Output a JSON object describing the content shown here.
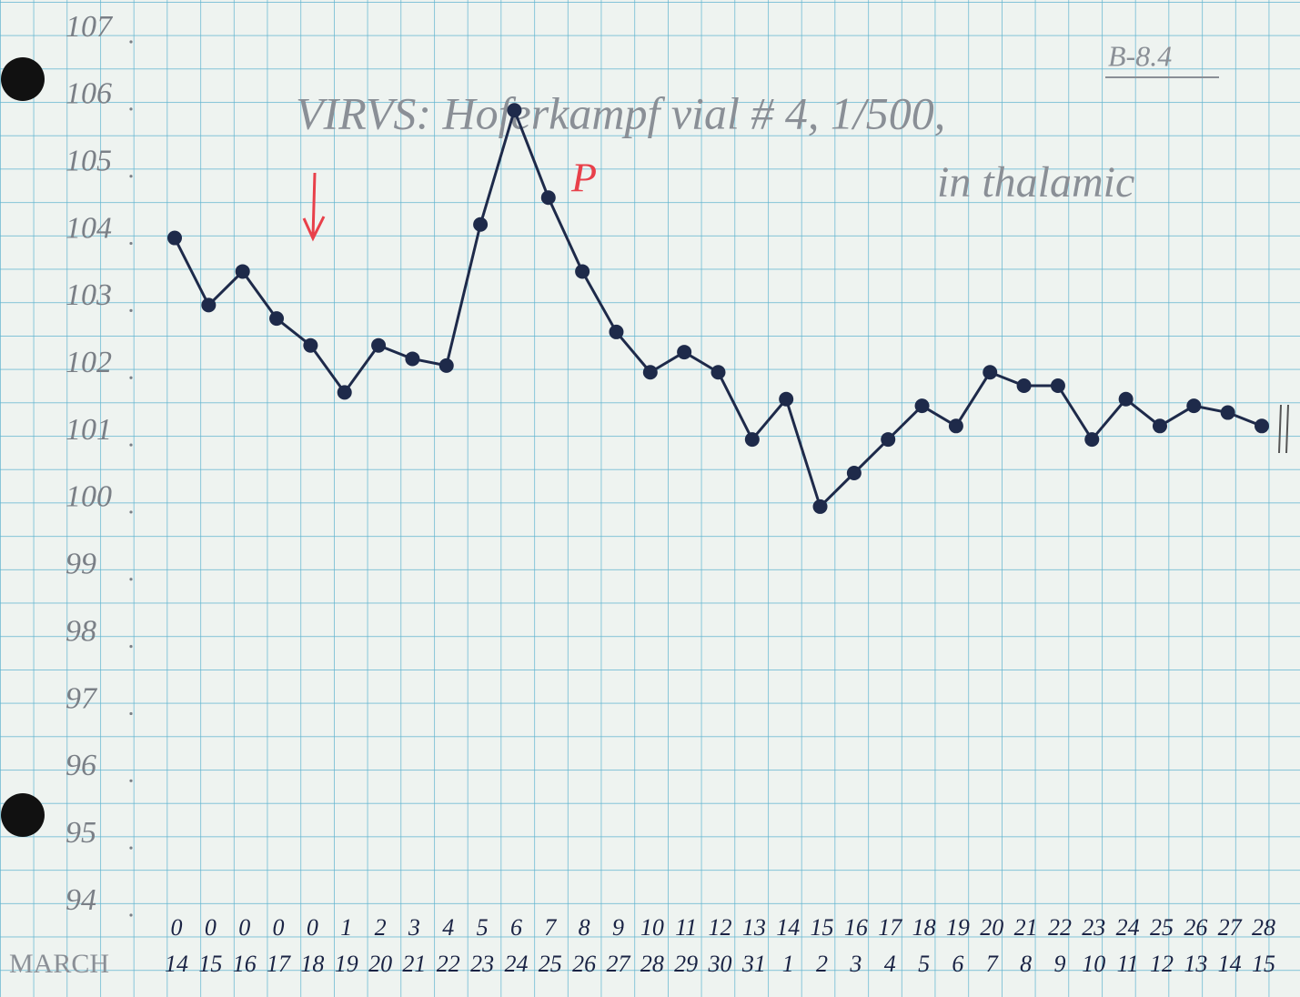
{
  "chart_data": {
    "type": "line",
    "title": "VIRVS: Hoferkampf vial # 4, 1/500,",
    "subtitle": "in thalamic",
    "reference": "B-8.4",
    "month_label": "MARCH",
    "annotation": "P",
    "day_labels": [
      "0",
      "0",
      "0",
      "0",
      "0",
      "1",
      "2",
      "3",
      "4",
      "5",
      "6",
      "7",
      "8",
      "9",
      "10",
      "11",
      "12",
      "13",
      "14",
      "15",
      "16",
      "17",
      "18",
      "19",
      "20",
      "21",
      "22",
      "23",
      "24",
      "25",
      "26",
      "27",
      "28"
    ],
    "categories": [
      "14",
      "15",
      "16",
      "17",
      "18",
      "19",
      "20",
      "21",
      "22",
      "23",
      "24",
      "25",
      "26",
      "27",
      "28",
      "29",
      "30",
      "31",
      "1",
      "2",
      "3",
      "4",
      "5",
      "6",
      "7",
      "8",
      "9",
      "10",
      "11",
      "12",
      "13",
      "14",
      "15"
    ],
    "values": [
      104.0,
      103.0,
      103.5,
      102.8,
      102.4,
      101.7,
      102.4,
      102.2,
      102.1,
      104.2,
      105.9,
      104.6,
      103.5,
      102.6,
      102.0,
      102.3,
      102.0,
      101.0,
      101.6,
      100.0,
      100.5,
      101.0,
      101.5,
      101.2,
      102.0,
      101.8,
      101.8,
      101.0,
      101.6,
      101.2,
      101.5,
      101.4,
      101.2
    ],
    "color": "#1e2a4a",
    "ylim": [
      94,
      107
    ],
    "yticks": [
      94,
      95,
      96,
      97,
      98,
      99,
      100,
      101,
      102,
      103,
      104,
      105,
      106,
      107
    ]
  }
}
